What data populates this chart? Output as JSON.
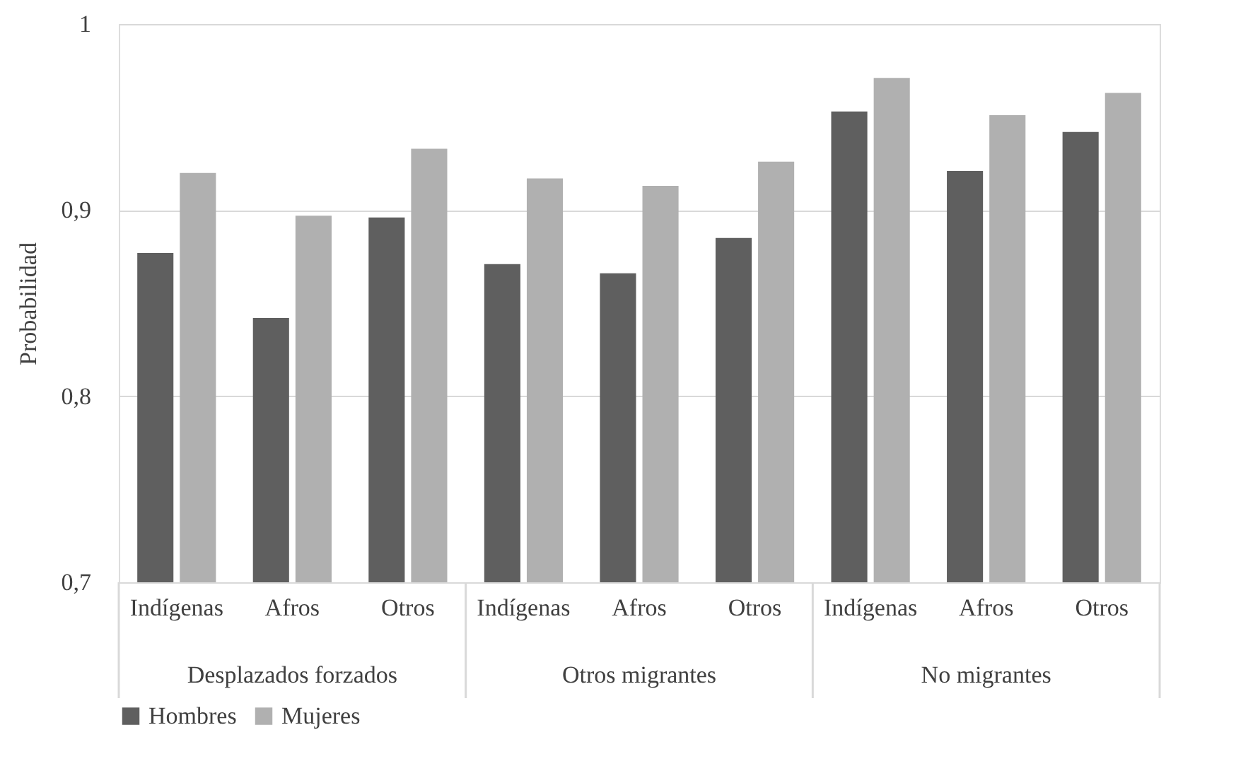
{
  "chart_data": {
    "type": "bar",
    "ylabel": "Probabilidad",
    "categories": [
      "Indígenas",
      "Afros",
      "Otros",
      "Indígenas",
      "Afros",
      "Otros",
      "Indígenas",
      "Afros",
      "Otros"
    ],
    "annotations": [
      "Desplazados forzados",
      "Otros migrantes",
      "No migrantes"
    ],
    "series": [
      {
        "name": "Hombres",
        "color": "#5f5f5f",
        "values": [
          0.877,
          0.842,
          0.896,
          0.871,
          0.866,
          0.885,
          0.953,
          0.921,
          0.942
        ]
      },
      {
        "name": "Mujeres",
        "color": "#b0b0b0",
        "values": [
          0.92,
          0.897,
          0.933,
          0.917,
          0.913,
          0.926,
          0.971,
          0.951,
          0.963
        ]
      }
    ],
    "ylim": [
      0.7,
      1
    ],
    "yticks": [
      {
        "value": 0.7,
        "label": "0,7"
      },
      {
        "value": 0.8,
        "label": "0,8"
      },
      {
        "value": 0.9,
        "label": "0,9"
      },
      1
    ],
    "grid": "y",
    "legend": "bottom"
  }
}
